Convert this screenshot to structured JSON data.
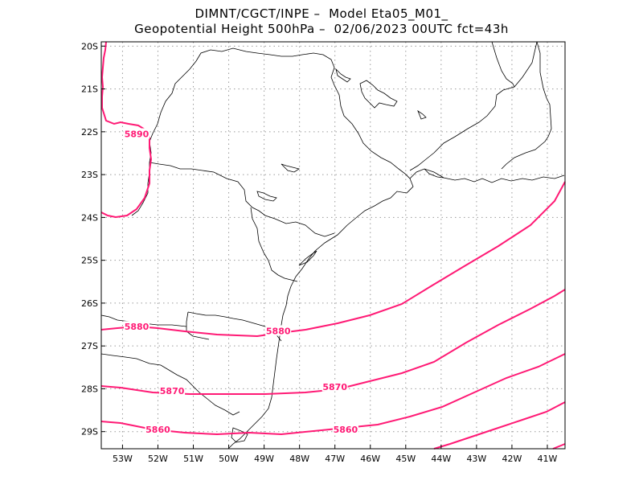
{
  "header": {
    "line1": "DIMNT/CGCT/INPE –  Model Eta05_M01_",
    "line2": "Geopotential Height 500hPa –  02/06/2023 00UTC fct=43h"
  },
  "colors": {
    "contour": "#ff1a75",
    "coast": "#000000",
    "grid": "#9a9a9a"
  },
  "axes": {
    "lon_labels": [
      "53W",
      "52W",
      "51W",
      "50W",
      "49W",
      "48W",
      "47W",
      "46W",
      "45W",
      "44W",
      "43W",
      "42W",
      "41W"
    ],
    "lat_labels": [
      "20S",
      "21S",
      "22S",
      "23S",
      "24S",
      "25S",
      "26S",
      "27S",
      "28S",
      "29S"
    ]
  },
  "chart_data": {
    "type": "contour-map",
    "field": "Geopotential Height 500hPa",
    "lon_range": [
      -53.6,
      -40.5
    ],
    "lat_range": [
      -29.4,
      -19.9
    ],
    "contours": [
      {
        "label": "5890",
        "label_pos": [
          -52.6,
          -22.05
        ]
      },
      {
        "label": "5880",
        "label_pos": [
          -52.6,
          -26.55
        ]
      },
      {
        "label": "5880",
        "label_pos": [
          -48.6,
          -26.65
        ]
      },
      {
        "label": "5870",
        "label_pos": [
          -51.6,
          -28.05
        ]
      },
      {
        "label": "5870",
        "label_pos": [
          -47.0,
          -27.95
        ]
      },
      {
        "label": "5860",
        "label_pos": [
          -52.0,
          -28.95
        ]
      },
      {
        "label": "5860",
        "label_pos": [
          -46.7,
          -28.95
        ]
      }
    ]
  }
}
